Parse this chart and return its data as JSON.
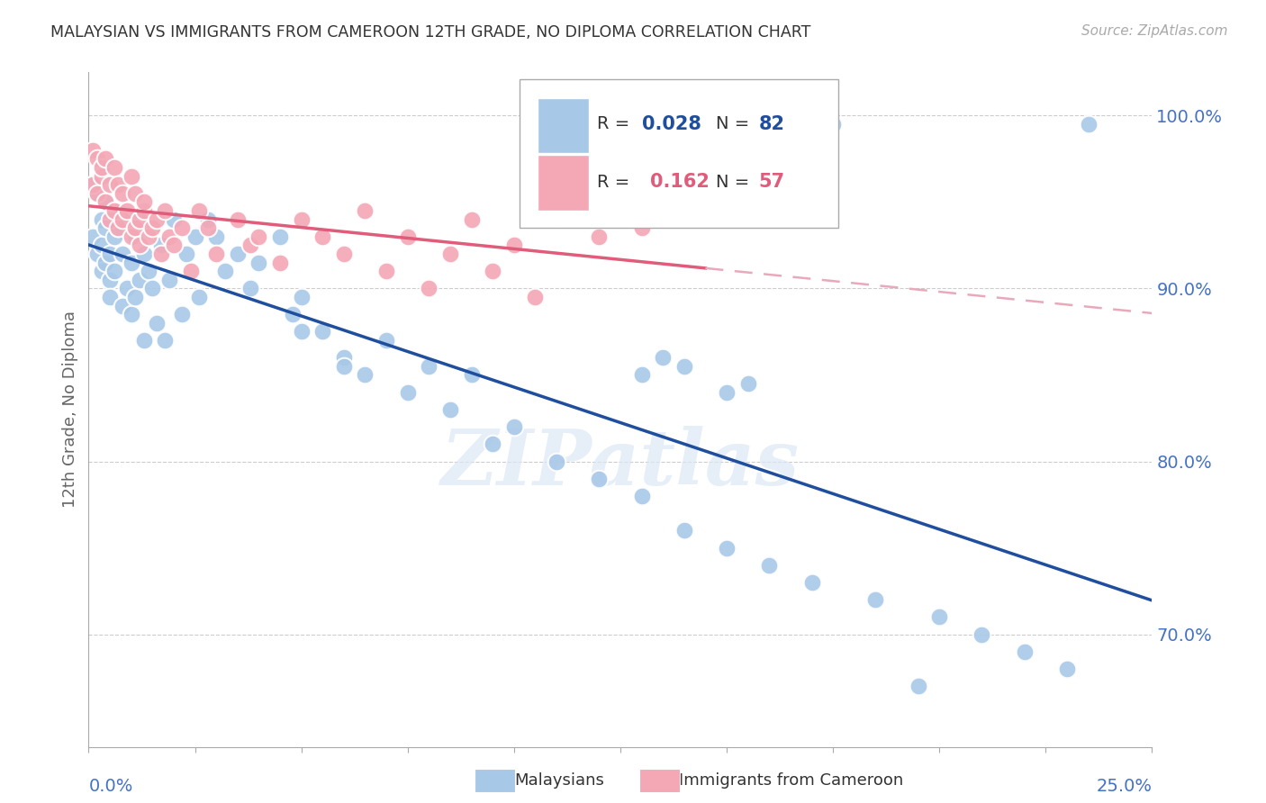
{
  "title": "MALAYSIAN VS IMMIGRANTS FROM CAMEROON 12TH GRADE, NO DIPLOMA CORRELATION CHART",
  "source": "Source: ZipAtlas.com",
  "ylabel": "12th Grade, No Diploma",
  "xlim": [
    0.0,
    0.25
  ],
  "ylim": [
    0.635,
    1.025
  ],
  "blue_color": "#a8c8e8",
  "blue_line_color": "#1f4e9e",
  "pink_color": "#f4a7b5",
  "pink_line_color": "#e05c7a",
  "pink_dash_color": "#e8aabb",
  "axis_label_color": "#4472c4",
  "grid_color": "#cccccc",
  "watermark": "ZIPatlas",
  "malaysians_x": [
    0.001,
    0.001,
    0.002,
    0.002,
    0.003,
    0.003,
    0.003,
    0.004,
    0.004,
    0.004,
    0.005,
    0.005,
    0.005,
    0.006,
    0.006,
    0.007,
    0.007,
    0.008,
    0.008,
    0.009,
    0.009,
    0.01,
    0.01,
    0.011,
    0.011,
    0.012,
    0.012,
    0.013,
    0.013,
    0.014,
    0.015,
    0.015,
    0.016,
    0.017,
    0.018,
    0.019,
    0.02,
    0.022,
    0.023,
    0.025,
    0.026,
    0.028,
    0.03,
    0.032,
    0.035,
    0.038,
    0.04,
    0.045,
    0.048,
    0.05,
    0.055,
    0.06,
    0.065,
    0.07,
    0.075,
    0.08,
    0.085,
    0.09,
    0.095,
    0.1,
    0.11,
    0.12,
    0.13,
    0.14,
    0.15,
    0.16,
    0.17,
    0.185,
    0.2,
    0.21,
    0.22,
    0.23,
    0.235,
    0.05,
    0.06,
    0.13,
    0.14,
    0.15,
    0.135,
    0.155,
    0.175,
    0.195
  ],
  "malaysians_y": [
    0.93,
    0.96,
    0.92,
    0.955,
    0.925,
    0.94,
    0.91,
    0.935,
    0.915,
    0.95,
    0.905,
    0.92,
    0.895,
    0.93,
    0.91,
    0.935,
    0.945,
    0.89,
    0.92,
    0.9,
    0.94,
    0.885,
    0.915,
    0.93,
    0.895,
    0.94,
    0.905,
    0.92,
    0.87,
    0.91,
    0.935,
    0.9,
    0.88,
    0.925,
    0.87,
    0.905,
    0.94,
    0.885,
    0.92,
    0.93,
    0.895,
    0.94,
    0.93,
    0.91,
    0.92,
    0.9,
    0.915,
    0.93,
    0.885,
    0.895,
    0.875,
    0.86,
    0.85,
    0.87,
    0.84,
    0.855,
    0.83,
    0.85,
    0.81,
    0.82,
    0.8,
    0.79,
    0.78,
    0.76,
    0.75,
    0.74,
    0.73,
    0.72,
    0.71,
    0.7,
    0.69,
    0.68,
    0.995,
    0.875,
    0.855,
    0.85,
    0.855,
    0.84,
    0.86,
    0.845,
    0.995,
    0.67
  ],
  "cameroon_x": [
    0.001,
    0.001,
    0.002,
    0.002,
    0.003,
    0.003,
    0.004,
    0.004,
    0.005,
    0.005,
    0.006,
    0.006,
    0.007,
    0.007,
    0.008,
    0.008,
    0.009,
    0.01,
    0.01,
    0.011,
    0.011,
    0.012,
    0.012,
    0.013,
    0.013,
    0.014,
    0.015,
    0.016,
    0.017,
    0.018,
    0.019,
    0.02,
    0.022,
    0.024,
    0.026,
    0.028,
    0.03,
    0.035,
    0.038,
    0.04,
    0.045,
    0.05,
    0.055,
    0.06,
    0.065,
    0.07,
    0.075,
    0.08,
    0.085,
    0.09,
    0.095,
    0.1,
    0.105,
    0.11,
    0.12,
    0.13,
    0.145
  ],
  "cameroon_y": [
    0.96,
    0.98,
    0.955,
    0.975,
    0.965,
    0.97,
    0.95,
    0.975,
    0.96,
    0.94,
    0.97,
    0.945,
    0.935,
    0.96,
    0.955,
    0.94,
    0.945,
    0.965,
    0.93,
    0.935,
    0.955,
    0.94,
    0.925,
    0.945,
    0.95,
    0.93,
    0.935,
    0.94,
    0.92,
    0.945,
    0.93,
    0.925,
    0.935,
    0.91,
    0.945,
    0.935,
    0.92,
    0.94,
    0.925,
    0.93,
    0.915,
    0.94,
    0.93,
    0.92,
    0.945,
    0.91,
    0.93,
    0.9,
    0.92,
    0.94,
    0.91,
    0.925,
    0.895,
    0.94,
    0.93,
    0.935,
    0.945
  ]
}
